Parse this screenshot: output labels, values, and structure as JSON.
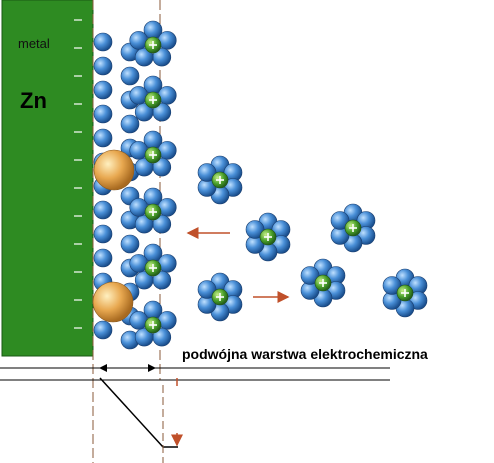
{
  "labels": {
    "metal": "metal",
    "element": "Zn",
    "caption": "podwójna warstwa elektrochemiczna"
  }
}
